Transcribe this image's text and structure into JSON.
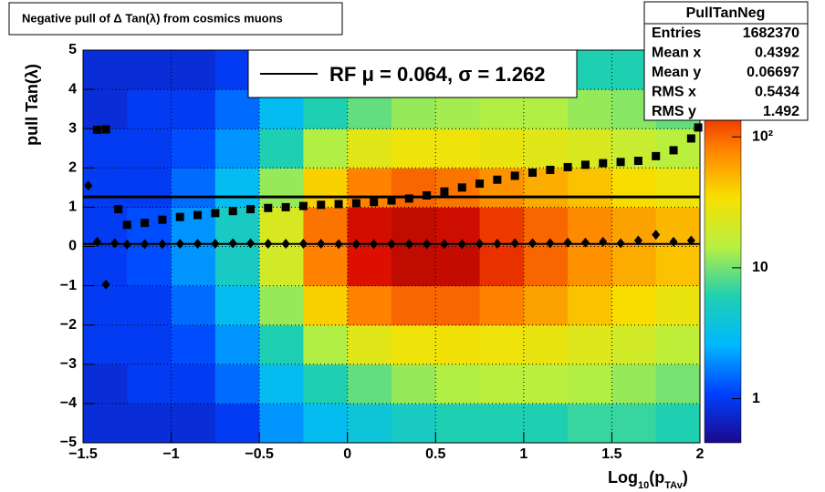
{
  "chart_data": {
    "type": "heatmap",
    "title": "Negative pull of Δ Tan(λ) from cosmics muons",
    "y_label": "pull Tan(λ)",
    "x_label_parts": [
      "Log",
      "10",
      "(p",
      "TAv",
      ")"
    ],
    "xlim": [
      -1.5,
      2
    ],
    "ylim": [
      -5,
      5
    ],
    "xticks": [
      {
        "value": -1.5,
        "label": "−1.5"
      },
      {
        "value": -1,
        "label": "−1"
      },
      {
        "value": -0.5,
        "label": "−0.5"
      },
      0,
      0.5,
      1,
      1.5,
      2
    ],
    "yticks": [
      {
        "value": -5,
        "label": "−5"
      },
      {
        "value": -4,
        "label": "−4"
      },
      {
        "value": -3,
        "label": "−3"
      },
      {
        "value": -2,
        "label": "−2"
      },
      {
        "value": -1,
        "label": "−1"
      },
      0,
      1,
      2,
      3,
      4,
      5
    ],
    "grid": true,
    "x_bins": [
      -1.5,
      -1.25,
      -1,
      -0.75,
      -0.5,
      -0.25,
      0,
      0.25,
      0.5,
      0.75,
      1,
      1.25,
      1.5,
      1.75,
      2
    ],
    "y_bins": [
      -5,
      -4,
      -3,
      -2,
      -1,
      0,
      1,
      2,
      3,
      4,
      5
    ],
    "z": [
      [
        0.8,
        0.8,
        0.8,
        1,
        2,
        3,
        4,
        5,
        6,
        6,
        6,
        7,
        7,
        6
      ],
      [
        0.8,
        1,
        1,
        1.5,
        3,
        6,
        9,
        12,
        14,
        15,
        15,
        14,
        12,
        10
      ],
      [
        1,
        1,
        1.2,
        2,
        6,
        14,
        25,
        30,
        32,
        30,
        28,
        24,
        20,
        16
      ],
      [
        1,
        1,
        1.5,
        3,
        12,
        40,
        80,
        100,
        100,
        80,
        60,
        45,
        35,
        28
      ],
      [
        1,
        1.2,
        2,
        5,
        20,
        80,
        200,
        260,
        250,
        150,
        100,
        70,
        55,
        45
      ],
      [
        1,
        1.2,
        2,
        5,
        22,
        90,
        220,
        260,
        230,
        140,
        100,
        75,
        60,
        50
      ],
      [
        1,
        1,
        1.5,
        3,
        12,
        40,
        80,
        100,
        90,
        70,
        55,
        45,
        35,
        30
      ],
      [
        1,
        1,
        1.2,
        2,
        6,
        14,
        25,
        30,
        30,
        28,
        25,
        22,
        18,
        15
      ],
      [
        0.8,
        1,
        1,
        1.5,
        3,
        6,
        9,
        12,
        13,
        14,
        14,
        12,
        11,
        9
      ],
      [
        0.8,
        0.8,
        0.8,
        1,
        2,
        3,
        4,
        5,
        6,
        6,
        6,
        6,
        6,
        5
      ]
    ],
    "zlim": [
      0.46,
      460
    ],
    "zlog": true,
    "zticks": [
      1,
      10,
      {
        "value": 100,
        "label": "10²"
      }
    ],
    "palette": [
      "#1a0a8c",
      "#0040ff",
      "#00b8ff",
      "#20d0b0",
      "#b8f040",
      "#f8e000",
      "#ff8000",
      "#e01000",
      "#800000"
    ],
    "series": [
      {
        "name": "mean",
        "marker": "diamond",
        "color": "#000000",
        "x": [
          -1.47,
          -1.42,
          -1.37,
          -1.32,
          -1.25,
          -1.15,
          -1.05,
          -0.95,
          -0.85,
          -0.75,
          -0.65,
          -0.55,
          -0.45,
          -0.35,
          -0.25,
          -0.15,
          -0.05,
          0.05,
          0.15,
          0.25,
          0.35,
          0.45,
          0.55,
          0.65,
          0.75,
          0.85,
          0.95,
          1.05,
          1.15,
          1.25,
          1.35,
          1.45,
          1.55,
          1.65,
          1.75,
          1.85,
          1.95
        ],
        "values": [
          1.55,
          0.12,
          -0.97,
          0.08,
          0.05,
          0.06,
          0.06,
          0.07,
          0.07,
          0.07,
          0.08,
          0.08,
          0.07,
          0.07,
          0.07,
          0.07,
          0.06,
          0.06,
          0.06,
          0.06,
          0.06,
          0.06,
          0.06,
          0.06,
          0.07,
          0.07,
          0.08,
          0.08,
          0.08,
          0.1,
          0.1,
          0.12,
          0.08,
          0.15,
          0.3,
          0.12,
          0.15
        ]
      },
      {
        "name": "rms",
        "marker": "square",
        "color": "#000000",
        "x": [
          -1.42,
          -1.37,
          -1.3,
          -1.25,
          -1.15,
          -1.05,
          -0.95,
          -0.85,
          -0.75,
          -0.65,
          -0.55,
          -0.45,
          -0.35,
          -0.25,
          -0.15,
          -0.05,
          0.05,
          0.15,
          0.25,
          0.35,
          0.45,
          0.55,
          0.65,
          0.75,
          0.85,
          0.95,
          1.05,
          1.15,
          1.25,
          1.35,
          1.45,
          1.55,
          1.65,
          1.75,
          1.85,
          1.95,
          1.99
        ],
        "values": [
          2.97,
          2.98,
          0.95,
          0.55,
          0.6,
          0.68,
          0.75,
          0.8,
          0.85,
          0.9,
          0.95,
          0.98,
          1.0,
          1.03,
          1.06,
          1.08,
          1.1,
          1.13,
          1.17,
          1.22,
          1.3,
          1.4,
          1.5,
          1.6,
          1.7,
          1.8,
          1.88,
          1.95,
          2.02,
          2.08,
          2.12,
          2.15,
          2.18,
          2.3,
          2.45,
          2.75,
          3.03
        ]
      }
    ],
    "fit": {
      "mu": 0.064,
      "sigma": 1.262,
      "legend": "RF μ =  0.064, σ =   1.262"
    },
    "stats_box": {
      "title": "PullTanNeg",
      "rows": [
        [
          "Entries",
          "1682370"
        ],
        [
          "Mean x",
          "0.4392"
        ],
        [
          "Mean y",
          "0.06697"
        ],
        [
          "RMS x",
          "0.5434"
        ],
        [
          "RMS y",
          "1.492"
        ]
      ]
    }
  }
}
